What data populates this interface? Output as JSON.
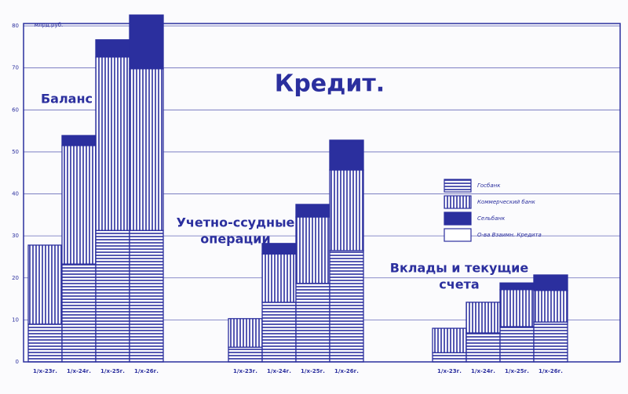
{
  "chart_data": {
    "type": "stacked-bar",
    "title": "Кредит.",
    "y_label": "млрд.руб.",
    "group_labels": [
      [
        "Баланс"
      ],
      [
        "Учетно-ссудные",
        "операции"
      ],
      [
        "Вклады и текущие",
        "счета"
      ]
    ],
    "categories": [
      "1/x-23г.",
      "1/x-24г.",
      "1/x-25г.",
      "1/x-26г.",
      "1/x-23г.",
      "1/x-24г.",
      "1/x-25г.",
      "1/x-26г.",
      "1/x-23г.",
      "1/x-24г.",
      "1/x-25г.",
      "1/x-26г."
    ],
    "series": [
      {
        "name": "Госбанк",
        "color": "#2b2f9e",
        "pattern": "horizontal",
        "values": [
          9,
          23.3,
          31.3,
          31.3,
          3.5,
          14.2,
          18.7,
          26.5,
          2.2,
          6.9,
          8.4,
          9.5
        ]
      },
      {
        "name": "Коммерческий банк",
        "color": "#2b2f9e",
        "pattern": "vertical",
        "values": [
          18.8,
          28.2,
          41.3,
          38.5,
          6.8,
          11.5,
          15.8,
          19.2,
          5.8,
          7.3,
          8.8,
          7.5
        ]
      },
      {
        "name": "Сельбанк",
        "color": "#2b2f9e",
        "pattern": "solid",
        "values": [
          0,
          2.4,
          4.1,
          12.8,
          0,
          2.5,
          3,
          7.1,
          0,
          0,
          1.6,
          3.7
        ]
      },
      {
        "name": "О-ва Взаимн. Кредита",
        "color": "#2b2f9e",
        "pattern": "none",
        "values": [
          0,
          0,
          0,
          0,
          0,
          0,
          0,
          0,
          0,
          0,
          0,
          0
        ]
      }
    ],
    "ylim": [
      0,
      83
    ],
    "yticks": [
      0,
      10,
      20,
      30,
      40,
      50,
      60,
      70,
      80
    ],
    "grid": true
  }
}
